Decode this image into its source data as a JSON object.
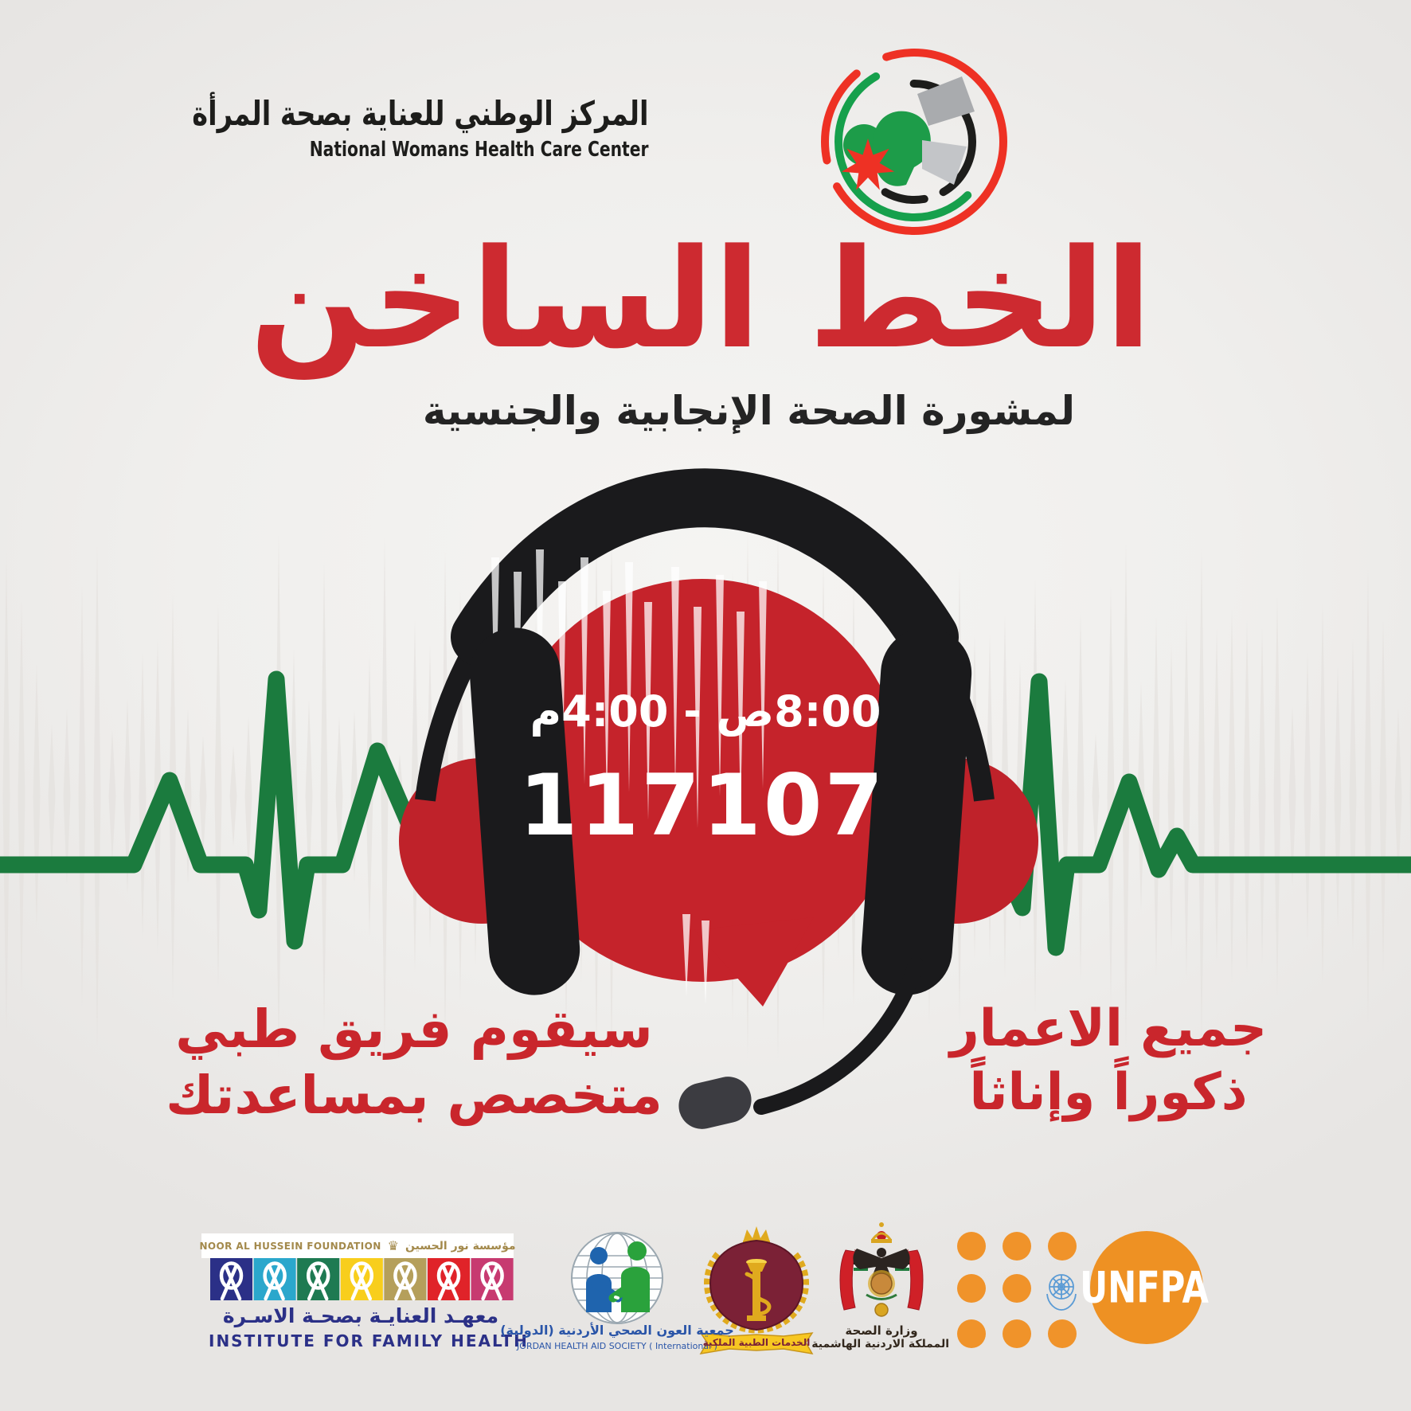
{
  "poster": {
    "header": {
      "org_ar": "المركز الوطني للعناية بصحة المرأة",
      "org_en": "National Womans Health Care Center"
    },
    "title": {
      "main": "الخط الساخن",
      "subtitle": "لمشورة الصحة الإنجابية والجنسية"
    },
    "hotline": {
      "hours": "8:00ص - 4:00م",
      "number": "117107"
    },
    "left_note": {
      "line1": "سيقوم فريق طبي",
      "line2": "متخصص بمساعدتك"
    },
    "right_note": {
      "line1": "جميع الاعمار",
      "line2": "ذكوراً وإناثاً"
    }
  },
  "partners": {
    "ifh": {
      "foundation_en": "NOOR AL HUSSEIN FOUNDATION",
      "foundation_ar": "مؤسسة نور الحسين",
      "crown": "♛",
      "institute_ar": "معهـد العنايـة بصحـة الاسـرة",
      "institute_en": "INSTITUTE FOR FAMILY HEALTH",
      "ribbon_colors": [
        "#2b3087",
        "#2ba7cc",
        "#1e7a52",
        "#f8ce1c",
        "#b59f5b",
        "#e02329",
        "#c73a70"
      ]
    },
    "jhas": {
      "name_ar": "جمعية العون الصحي الأردنية (الدولية)",
      "name_en": "JORDAN HEALTH AID SOCIETY ( International )"
    },
    "rms": {
      "banner_ar": "الخدمات الطبية الملكية"
    },
    "moh": {
      "name_ar": "وزارة الصحة",
      "kingdom_ar": "المملكة الاردنية الهاشمية"
    },
    "unfpa": {
      "label": "UNFPA"
    }
  },
  "colors": {
    "accent_red": "#cd2a30",
    "bubble_red": "#c5232b",
    "ear_red": "#bf222a",
    "note_red": "#c9262c",
    "ecg_green": "#1b7b3e",
    "ink_black": "#1a1a1c",
    "orange": "#f0932a",
    "unfpa_orange": "#ee9123",
    "navy": "#2b3087",
    "gold": "#a3894b",
    "rms_gold": "#e0aa1e",
    "maroon": "#7b2136",
    "jhas_blue": "#2a55a8",
    "un_blue": "#5b9bd5",
    "logo_red": "#ee3124",
    "logo_green": "#16a04c"
  }
}
